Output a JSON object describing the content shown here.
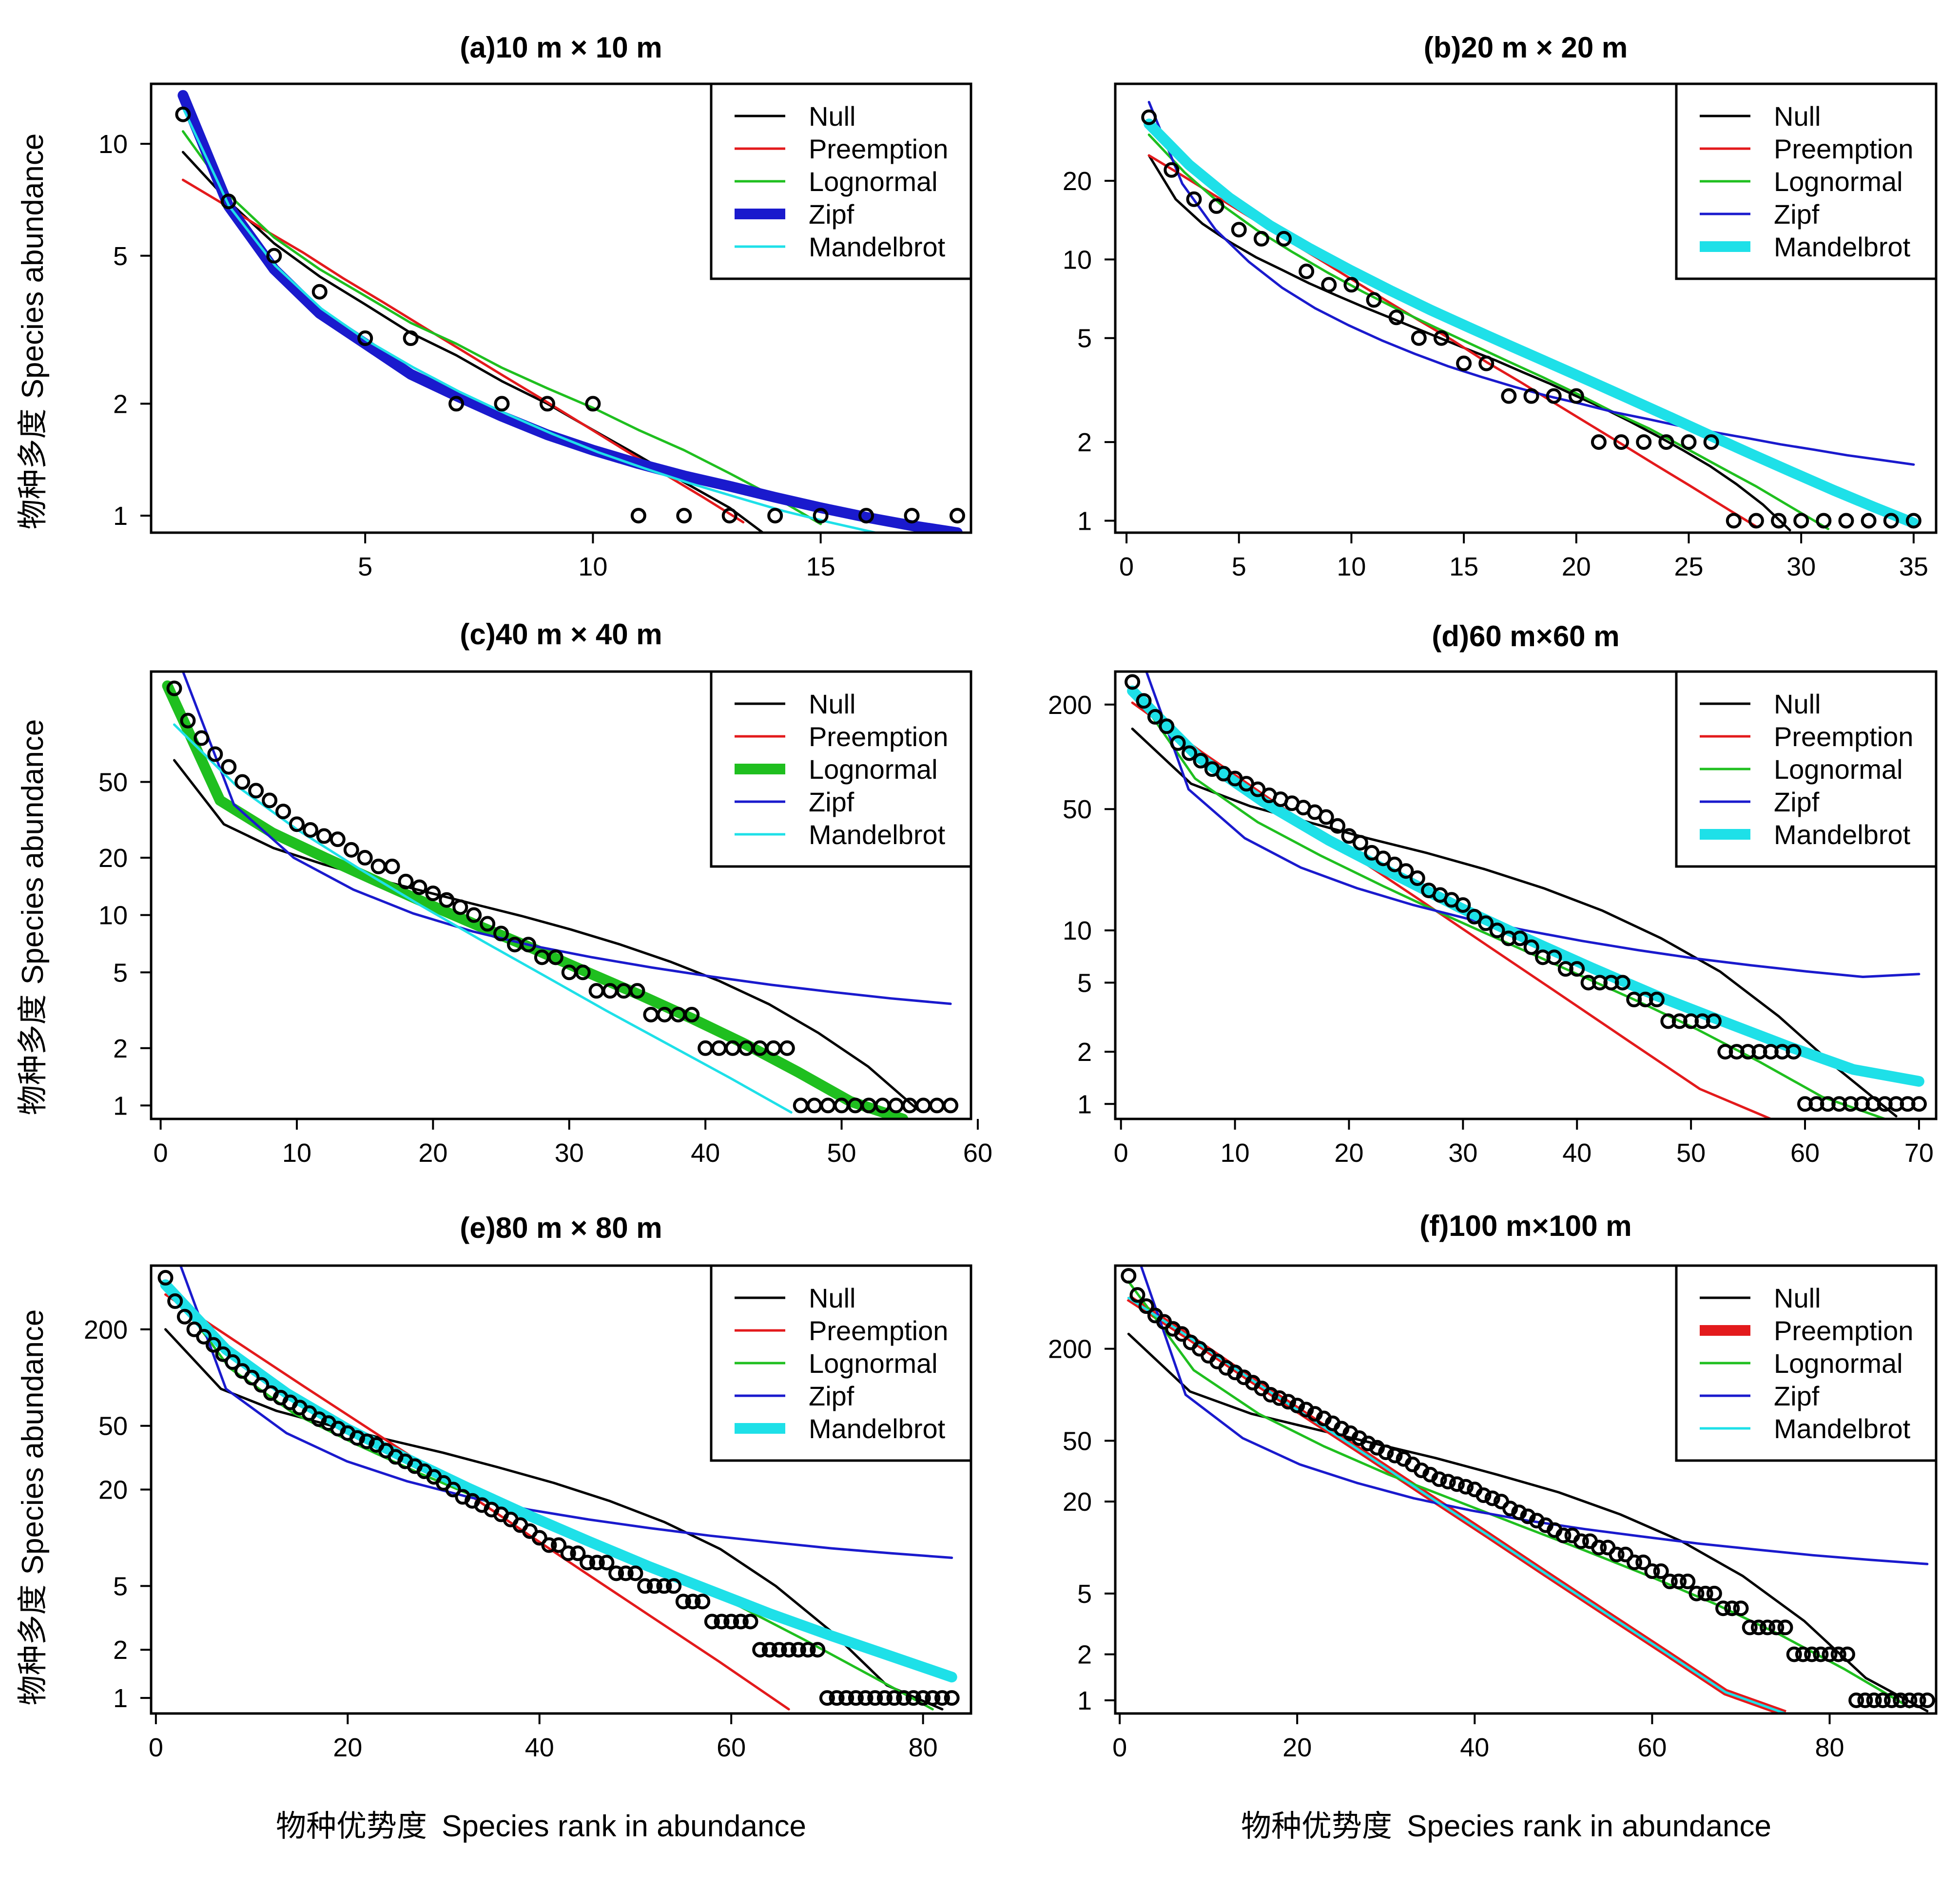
{
  "figure": {
    "common_xlabel_cn": "物种优势度",
    "common_xlabel_en": "Species rank in abundance",
    "common_ylabel_cn": "物种多度",
    "common_ylabel_en": "Species abundance",
    "legend_labels": [
      "Null",
      "Preemption",
      "Lognormal",
      "Zipf",
      "Mandelbrot"
    ],
    "colors": {
      "Null": "#000000",
      "Preemption": "#e31a1c",
      "Lognormal": "#1fbf1f",
      "Zipf": "#1a1acd",
      "Mandelbrot": "#1ee0e8",
      "points": "#000000",
      "frame": "#000000"
    }
  },
  "chart_data": [
    {
      "type": "line",
      "title": "(a)10 m × 10 m",
      "y_scale": "log",
      "xlim": [
        0.3,
        18.3
      ],
      "ylim": [
        0.9,
        14.5
      ],
      "xticks": [
        5,
        10,
        15
      ],
      "yticks": [
        1,
        2,
        5,
        10
      ],
      "best_model": "Zipf",
      "observed": [
        12,
        7,
        5,
        4,
        3,
        3,
        2,
        2,
        2,
        2,
        1,
        1,
        1,
        1,
        1,
        1,
        1,
        1
      ],
      "models": {
        "Null": [
          9.5,
          7.0,
          5.4,
          4.4,
          3.7,
          3.1,
          2.7,
          2.3,
          2.0,
          1.7,
          1.45,
          1.23,
          1.05,
          0.85
        ],
        "Preemption": [
          8.0,
          6.9,
          5.9,
          5.1,
          4.35,
          3.75,
          3.22,
          2.77,
          2.38,
          2.05,
          1.76,
          1.51,
          1.3,
          1.12,
          0.96
        ],
        "Lognormal": [
          10.8,
          7.3,
          5.6,
          4.6,
          3.9,
          3.3,
          2.9,
          2.5,
          2.2,
          1.95,
          1.7,
          1.5,
          1.3,
          1.12,
          0.95
        ],
        "Zipf": [
          13.5,
          6.8,
          4.6,
          3.5,
          2.9,
          2.4,
          2.1,
          1.85,
          1.65,
          1.5,
          1.38,
          1.28,
          1.2,
          1.12,
          1.05,
          0.99,
          0.94,
          0.9
        ],
        "Mandelbrot": [
          12.5,
          6.8,
          4.7,
          3.6,
          2.95,
          2.5,
          2.15,
          1.88,
          1.66,
          1.48,
          1.34,
          1.22,
          1.12,
          1.03,
          0.96,
          0.9
        ]
      }
    },
    {
      "type": "line",
      "title": "(b)20 m × 20 m",
      "y_scale": "log",
      "xlim": [
        -0.5,
        36
      ],
      "ylim": [
        0.9,
        47
      ],
      "xticks": [
        0,
        5,
        10,
        15,
        20,
        25,
        30,
        35
      ],
      "yticks": [
        1,
        2,
        5,
        10,
        20
      ],
      "best_model": "Mandelbrot",
      "observed": [
        35,
        22,
        17,
        16,
        13,
        12,
        12,
        9,
        8,
        8,
        7,
        6,
        5,
        5,
        4,
        4,
        3,
        3,
        3,
        3,
        2,
        2,
        2,
        2,
        2,
        2,
        1,
        1,
        1,
        1,
        1,
        1,
        1,
        1,
        1
      ],
      "models": {
        "Null": [
          25,
          17,
          13.7,
          11.7,
          10.2,
          9.1,
          8.1,
          7.3,
          6.6,
          6.0,
          5.45,
          4.95,
          4.5,
          4.1,
          3.7,
          3.35,
          3.0,
          2.7,
          2.4,
          2.12,
          1.86,
          1.62,
          1.38,
          1.15,
          0.92
        ],
        "Preemption": [
          25,
          20.9,
          17.4,
          14.5,
          12.1,
          10.1,
          8.4,
          7.0,
          5.85,
          4.9,
          4.05,
          3.4,
          2.83,
          2.36,
          1.97,
          1.64,
          1.37,
          1.14,
          0.95
        ],
        "Lognormal": [
          30,
          21.5,
          16.3,
          13,
          10.7,
          8.9,
          7.5,
          6.4,
          5.5,
          4.75,
          4.1,
          3.55,
          3.05,
          2.6,
          2.25,
          1.9,
          1.6,
          1.35,
          1.12,
          0.93
        ],
        "Zipf": [
          40,
          19.5,
          13,
          9.8,
          7.8,
          6.5,
          5.6,
          4.9,
          4.35,
          3.9,
          3.55,
          3.25,
          3.0,
          2.8,
          2.6,
          2.45,
          2.3,
          2.18,
          2.07,
          1.96,
          1.87,
          1.78,
          1.71,
          1.64
        ],
        "Mandelbrot": [
          33,
          23,
          17.2,
          13.5,
          11,
          9.1,
          7.6,
          6.4,
          5.45,
          4.65,
          3.98,
          3.4,
          2.9,
          2.47,
          2.1,
          1.79,
          1.53,
          1.31,
          1.13,
          0.98
        ]
      }
    },
    {
      "type": "line",
      "title": "(c)40 m × 40 m",
      "y_scale": "log",
      "xlim": [
        -0.7,
        59.5
      ],
      "ylim": [
        0.85,
        190
      ],
      "xticks": [
        0,
        10,
        20,
        30,
        40,
        50,
        60
      ],
      "yticks": [
        1,
        2,
        5,
        10,
        20,
        50
      ],
      "best_model": "Lognormal",
      "observed": [
        155,
        105,
        85,
        70,
        60,
        50,
        45,
        40,
        35,
        30,
        28,
        26,
        25,
        22,
        20,
        18,
        18,
        15,
        14,
        13,
        12,
        11,
        10,
        9,
        8,
        7,
        7,
        6,
        6,
        5,
        5,
        4,
        4,
        4,
        4,
        3,
        3,
        3,
        3,
        2,
        2,
        2,
        2,
        2,
        2,
        2,
        1,
        1,
        1,
        1,
        1,
        1,
        1,
        1,
        1,
        1,
        1,
        1
      ],
      "models": {
        "Null": [
          65,
          30,
          22.5,
          18.5,
          15.6,
          13.4,
          11.5,
          9.9,
          8.4,
          7.0,
          5.7,
          4.5,
          3.4,
          2.4,
          1.6,
          0.95
        ],
        "Preemption": [],
        "Lognormal": [
          160,
          40,
          27,
          20,
          15,
          11.3,
          8.6,
          6.6,
          5.0,
          3.8,
          2.85,
          2.1,
          1.5,
          1.05,
          0.85
        ],
        "Zipf": [
          250,
          38,
          20,
          13.6,
          10.2,
          8.2,
          6.9,
          6.0,
          5.3,
          4.75,
          4.3,
          3.95,
          3.65,
          3.42
        ],
        "Mandelbrot": [
          100,
          48,
          28,
          17.5,
          11.2,
          7.3,
          4.8,
          3.15,
          2.1,
          1.4,
          0.92
        ]
      }
    },
    {
      "type": "line",
      "title": "(d)60 m×60 m",
      "y_scale": "log",
      "xlim": [
        -0.5,
        71.5
      ],
      "ylim": [
        0.82,
        310
      ],
      "xticks": [
        0,
        10,
        20,
        30,
        40,
        50,
        60,
        70
      ],
      "yticks": [
        1,
        2,
        5,
        10,
        50,
        200
      ],
      "best_model": "Mandelbrot",
      "observed": [
        270,
        210,
        170,
        150,
        120,
        105,
        95,
        85,
        80,
        75,
        70,
        65,
        60,
        57,
        54,
        51,
        48,
        45,
        40,
        35,
        32,
        28,
        26,
        24,
        22,
        20,
        17,
        16,
        15,
        14,
        12,
        11,
        10,
        9,
        9,
        8,
        7,
        7,
        6,
        6,
        5,
        5,
        5,
        5,
        4,
        4,
        4,
        3,
        3,
        3,
        3,
        3,
        2,
        2,
        2,
        2,
        2,
        2,
        2,
        1,
        1,
        1,
        1,
        1,
        1,
        1,
        1,
        1,
        1,
        1
      ],
      "models": {
        "Null": [
          145,
          70,
          52,
          42,
          34,
          28,
          22.5,
          17.5,
          13,
          9,
          5.8,
          3.2,
          1.6,
          0.85
        ],
        "Preemption": [
          205,
          105,
          55,
          29,
          15.5,
          8.2,
          4.35,
          2.3,
          1.22,
          0.82
        ],
        "Lognormal": [
          250,
          75,
          42,
          27,
          18,
          12.2,
          8.4,
          5.8,
          4.0,
          2.7,
          1.75,
          1.1,
          0.82
        ],
        "Zipf": [
          520,
          65,
          34,
          23,
          17.5,
          14,
          11.6,
          10,
          8.7,
          7.7,
          6.9,
          6.3,
          5.8,
          5.4,
          5.6
        ],
        "Mandelbrot": [
          240,
          100,
          55,
          33,
          21,
          13.5,
          9,
          6.1,
          4.2,
          3.0,
          2.15,
          1.58,
          1.35
        ]
      }
    },
    {
      "type": "line",
      "title": "(e)80 m × 80 m",
      "y_scale": "log",
      "xlim": [
        -0.5,
        85
      ],
      "ylim": [
        0.8,
        500
      ],
      "xticks": [
        0,
        20,
        40,
        60,
        80
      ],
      "yticks": [
        1,
        2,
        5,
        20,
        50,
        200
      ],
      "best_model": "Mandelbrot",
      "observed": [
        420,
        300,
        240,
        200,
        180,
        160,
        140,
        125,
        110,
        100,
        90,
        80,
        75,
        70,
        65,
        60,
        55,
        52,
        48,
        45,
        42,
        40,
        38,
        35,
        32,
        30,
        28,
        26,
        24,
        22,
        20,
        18,
        17,
        16,
        15,
        14,
        13,
        12,
        11,
        10,
        9,
        9,
        8,
        8,
        7,
        7,
        7,
        6,
        6,
        6,
        5,
        5,
        5,
        5,
        4,
        4,
        4,
        3,
        3,
        3,
        3,
        3,
        2,
        2,
        2,
        2,
        2,
        2,
        2,
        1,
        1,
        1,
        1,
        1,
        1,
        1,
        1,
        1,
        1,
        1,
        1,
        1,
        1
      ],
      "models": {
        "Null": [
          200,
          85,
          62,
          50,
          41,
          34,
          27.5,
          22,
          17,
          12.5,
          8.5,
          5.0,
          2.6,
          1.2,
          0.85
        ],
        "Preemption": [
          330,
          170,
          88,
          46,
          24,
          12.3,
          6.3,
          3.25,
          1.68,
          0.85
        ],
        "Lognormal": [
          400,
          115,
          60,
          38,
          25,
          17,
          11.8,
          8.2,
          5.6,
          3.7,
          2.3,
          1.4,
          0.85
        ],
        "Zipf": [
          900,
          85,
          45,
          30,
          22.5,
          18,
          15,
          13,
          11.5,
          10.3,
          9.4,
          8.6,
          8.0,
          7.5
        ],
        "Mandelbrot": [
          380,
          150,
          80,
          48,
          31,
          20.5,
          13.8,
          9.5,
          6.6,
          4.7,
          3.35,
          2.45,
          1.82,
          1.35
        ]
      }
    },
    {
      "type": "line",
      "title": "(f)100 m×100 m",
      "y_scale": "log",
      "xlim": [
        -0.5,
        92
      ],
      "ylim": [
        0.82,
        700
      ],
      "xticks": [
        0,
        20,
        40,
        60,
        80
      ],
      "yticks": [
        1,
        2,
        5,
        20,
        50,
        200
      ],
      "best_model": "Preemption",
      "observed": [
        600,
        450,
        380,
        330,
        300,
        270,
        250,
        220,
        200,
        180,
        165,
        150,
        140,
        130,
        120,
        110,
        100,
        95,
        90,
        85,
        80,
        75,
        70,
        65,
        60,
        56,
        52,
        48,
        45,
        42,
        40,
        38,
        35,
        32,
        30,
        28,
        27,
        26,
        25,
        24,
        22,
        21,
        20,
        18,
        17,
        16,
        15,
        14,
        13,
        12,
        12,
        11,
        11,
        10,
        10,
        9,
        9,
        8,
        8,
        7,
        7,
        6,
        6,
        6,
        5,
        5,
        5,
        4,
        4,
        4,
        3,
        3,
        3,
        3,
        3,
        2,
        2,
        2,
        2,
        2,
        2,
        2,
        1,
        1,
        1,
        1,
        1,
        1,
        1,
        1,
        1
      ],
      "models": {
        "Null": [
          250,
          105,
          75,
          60,
          48,
          38.5,
          30,
          23,
          16.5,
          11,
          6.5,
          3.3,
          1.4,
          0.85
        ],
        "Preemption": [
          430,
          240,
          130,
          72,
          40,
          22,
          12.2,
          6.7,
          3.7,
          2.05,
          1.13,
          0.82
        ],
        "Lognormal": [
          550,
          145,
          75,
          46,
          30,
          20.5,
          14,
          9.6,
          6.5,
          4.3,
          2.7,
          1.6,
          0.9
        ],
        "Zipf": [
          1200,
          100,
          52,
          35,
          26.5,
          21,
          17.5,
          15,
          13.2,
          11.8,
          10.6,
          9.7,
          8.9,
          8.3,
          7.8
        ],
        "Mandelbrot": [
          430,
          240,
          130,
          72,
          40,
          22,
          12.2,
          6.7,
          3.7,
          2.05,
          1.13,
          0.82
        ]
      }
    }
  ]
}
